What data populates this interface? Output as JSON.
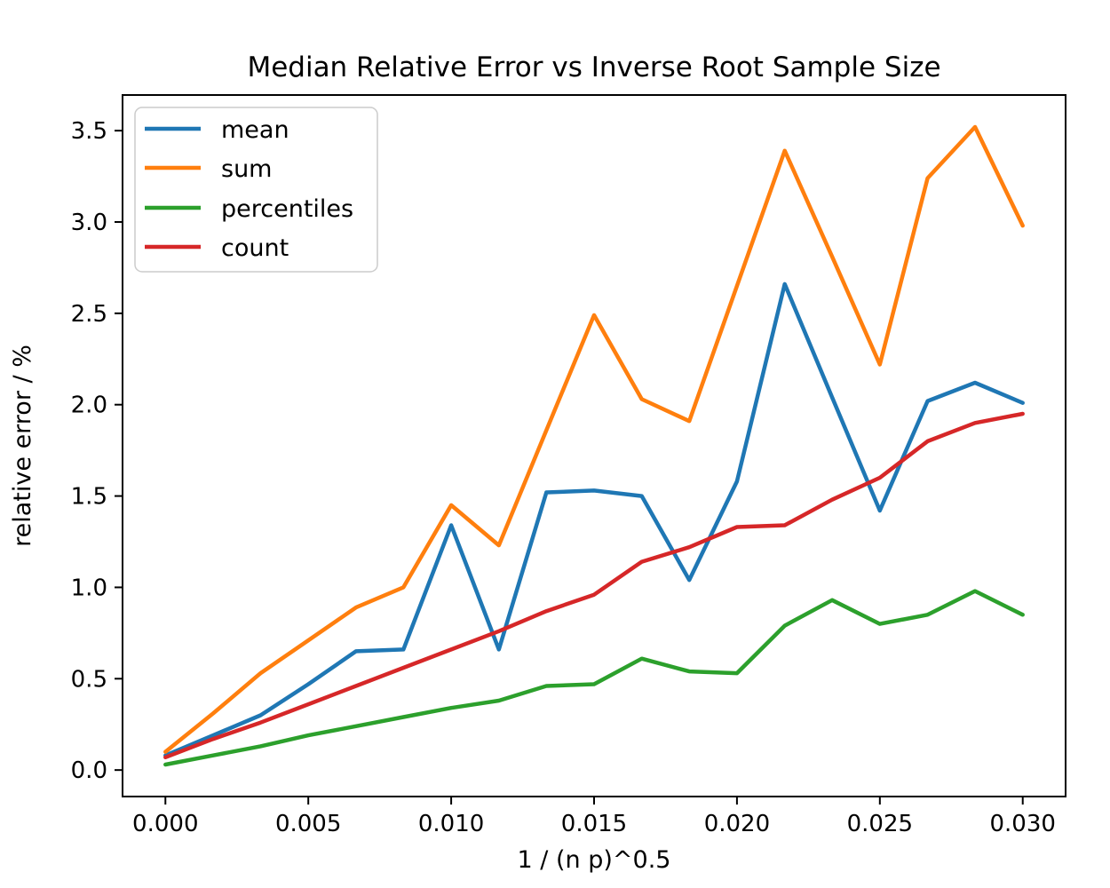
{
  "figure": {
    "background": "#ffffff",
    "axis_color": "#000000",
    "legend_border_color": "#cccccc"
  },
  "chart_data": {
    "type": "line",
    "title": "Median Relative Error vs Inverse Root Sample Size",
    "xlabel": "1 / (n p)^0.5",
    "ylabel": "relative error / %",
    "x": [
      0.0,
      0.00167,
      0.00333,
      0.005,
      0.00667,
      0.00833,
      0.01,
      0.01167,
      0.01333,
      0.015,
      0.01667,
      0.01833,
      0.02,
      0.02167,
      0.02333,
      0.025,
      0.02667,
      0.02833,
      0.03
    ],
    "series": [
      {
        "name": "mean",
        "color": "#1f77b4",
        "values": [
          0.08,
          0.19,
          0.3,
          0.47,
          0.65,
          0.66,
          1.34,
          0.66,
          1.52,
          1.53,
          1.5,
          1.04,
          1.58,
          2.66,
          2.04,
          1.42,
          2.02,
          2.12,
          2.01
        ]
      },
      {
        "name": "sum",
        "color": "#ff7f0e",
        "values": [
          0.1,
          0.31,
          0.53,
          0.71,
          0.89,
          1.0,
          1.45,
          1.23,
          1.86,
          2.49,
          2.03,
          1.91,
          2.65,
          3.39,
          2.81,
          2.22,
          3.24,
          3.52,
          2.98
        ]
      },
      {
        "name": "percentiles",
        "color": "#2ca02c",
        "values": [
          0.03,
          0.08,
          0.13,
          0.19,
          0.24,
          0.29,
          0.34,
          0.38,
          0.46,
          0.47,
          0.61,
          0.54,
          0.53,
          0.79,
          0.93,
          0.8,
          0.85,
          0.98,
          0.85
        ]
      },
      {
        "name": "count",
        "color": "#d62728",
        "values": [
          0.07,
          0.17,
          0.26,
          0.36,
          0.46,
          0.56,
          0.66,
          0.76,
          0.87,
          0.96,
          1.14,
          1.22,
          1.33,
          1.34,
          1.48,
          1.6,
          1.8,
          1.9,
          1.95
        ]
      }
    ],
    "x_ticks": [
      0.0,
      0.005,
      0.01,
      0.015,
      0.02,
      0.025,
      0.03
    ],
    "x_tick_labels": [
      "0.000",
      "0.005",
      "0.010",
      "0.015",
      "0.020",
      "0.025",
      "0.030"
    ],
    "y_ticks": [
      0.0,
      0.5,
      1.0,
      1.5,
      2.0,
      2.5,
      3.0,
      3.5
    ],
    "y_tick_labels": [
      "0.0",
      "0.5",
      "1.0",
      "1.5",
      "2.0",
      "2.5",
      "3.0",
      "3.5"
    ],
    "xlim": [
      -0.0015,
      0.0315
    ],
    "ylim": [
      -0.145,
      3.695
    ],
    "grid": false,
    "legend_position": "upper left"
  }
}
